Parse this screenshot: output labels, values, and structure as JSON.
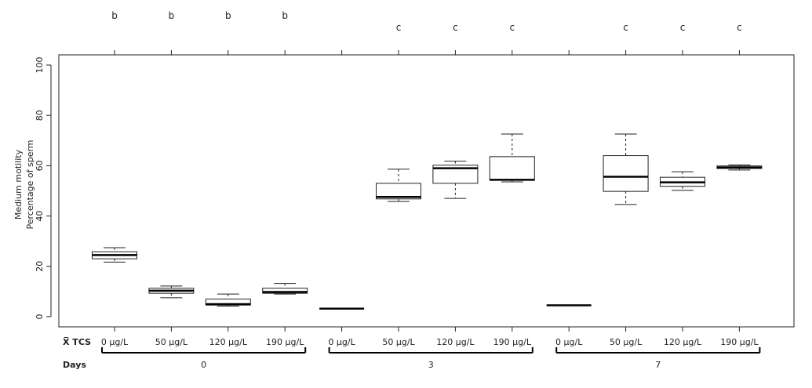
{
  "chart_data": {
    "type": "box",
    "y_axis": {
      "label_line1": "Medium motility",
      "label_line2": "Percentage of sperm",
      "ylim": [
        0,
        100
      ],
      "ticks": [
        "0",
        "20",
        "40",
        "60",
        "80",
        "100"
      ]
    },
    "row_labels": {
      "tcs": "X̅ TCS",
      "days": "Days"
    },
    "groups": [
      {
        "day": "0",
        "boxes": [
          {
            "concentration": "0 µg/L",
            "min": 21.7,
            "q1": 23.0,
            "median": 24.5,
            "q3": 25.8,
            "max": 27.4,
            "letter": "b"
          },
          {
            "concentration": "50 µg/L",
            "min": 7.5,
            "q1": 9.3,
            "median": 10.3,
            "q3": 11.3,
            "max": 12.2,
            "letter": "b"
          },
          {
            "concentration": "120 µg/L",
            "min": 4.2,
            "q1": 4.6,
            "median": 5.0,
            "q3": 7.0,
            "max": 9.0,
            "letter": "b"
          },
          {
            "concentration": "190 µg/L",
            "min": 9.0,
            "q1": 9.3,
            "median": 9.8,
            "q3": 11.3,
            "max": 13.2,
            "letter": "b"
          }
        ]
      },
      {
        "day": "3",
        "boxes": [
          {
            "concentration": "0 µg/L",
            "min": 3.2,
            "q1": 3.2,
            "median": 3.2,
            "q3": 3.2,
            "max": 3.2,
            "letter": ""
          },
          {
            "concentration": "50 µg/L",
            "min": 45.8,
            "q1": 46.8,
            "median": 47.6,
            "q3": 53.0,
            "max": 58.6,
            "letter": "c"
          },
          {
            "concentration": "120 µg/L",
            "min": 47.0,
            "q1": 53.0,
            "median": 59.0,
            "q3": 60.2,
            "max": 61.8,
            "letter": "c"
          },
          {
            "concentration": "190 µg/L",
            "min": 53.6,
            "q1": 54.2,
            "median": 54.4,
            "q3": 63.6,
            "max": 72.6,
            "letter": "c"
          }
        ]
      },
      {
        "day": "7",
        "boxes": [
          {
            "concentration": "0 µg/L",
            "min": 4.5,
            "q1": 4.5,
            "median": 4.5,
            "q3": 4.5,
            "max": 4.5,
            "letter": ""
          },
          {
            "concentration": "50 µg/L",
            "min": 44.6,
            "q1": 49.8,
            "median": 55.6,
            "q3": 64.0,
            "max": 72.6,
            "letter": "c"
          },
          {
            "concentration": "120 µg/L",
            "min": 50.2,
            "q1": 51.8,
            "median": 53.4,
            "q3": 55.4,
            "max": 57.6,
            "letter": "c"
          },
          {
            "concentration": "190 µg/L",
            "min": 58.3,
            "q1": 58.9,
            "median": 59.3,
            "q3": 59.9,
            "max": 60.3,
            "letter": "c"
          }
        ]
      }
    ],
    "grid": false,
    "legend": "none"
  }
}
